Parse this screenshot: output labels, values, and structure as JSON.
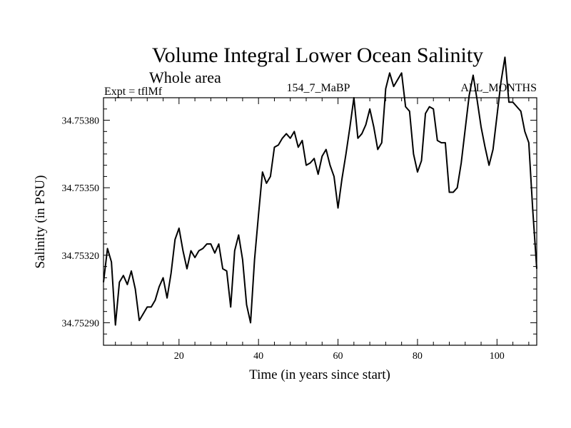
{
  "chart_data": {
    "type": "line",
    "title": "Volume Integral Lower Ocean Salinity",
    "subtitle": "Whole area",
    "label_left": "Expt = tflMf",
    "label_center": "154_7_MaBP",
    "label_right": "ALL_MONTHS",
    "xlabel": "Time (in years since start)",
    "ylabel": "Salinity (in PSU)",
    "xlim": [
      1,
      110
    ],
    "ylim": [
      34.7528,
      34.7539
    ],
    "x_major_ticks": [
      20,
      40,
      60,
      80,
      100
    ],
    "x_tick_labels": [
      "20",
      "40",
      "60",
      "80",
      "100"
    ],
    "x_minor_step": 4,
    "y_major_ticks": [
      34.7529,
      34.7532,
      34.7535,
      34.7538
    ],
    "y_tick_labels": [
      "34.75290",
      "34.75320",
      "34.75350",
      "34.75380"
    ],
    "y_minor_step": 5e-05,
    "line_color": "#000000",
    "series": [
      {
        "name": "salinity",
        "x": [
          1,
          2,
          3,
          4,
          5,
          6,
          7,
          8,
          9,
          10,
          11,
          12,
          13,
          14,
          15,
          16,
          17,
          18,
          19,
          20,
          21,
          22,
          23,
          24,
          25,
          26,
          27,
          28,
          29,
          30,
          31,
          32,
          33,
          34,
          35,
          36,
          37,
          38,
          39,
          40,
          41,
          42,
          43,
          44,
          45,
          46,
          47,
          48,
          49,
          50,
          51,
          52,
          53,
          54,
          55,
          56,
          57,
          58,
          59,
          60,
          61,
          62,
          63,
          64,
          65,
          66,
          67,
          68,
          69,
          70,
          71,
          72,
          73,
          74,
          75,
          76,
          77,
          78,
          79,
          80,
          81,
          82,
          83,
          84,
          85,
          86,
          87,
          88,
          89,
          90,
          91,
          92,
          93,
          94,
          95,
          96,
          97,
          98,
          99,
          100,
          101,
          102,
          103,
          104,
          105,
          106,
          107,
          108,
          109,
          110
        ],
        "values": [
          34.75308,
          34.75323,
          34.75317,
          34.75289,
          34.75308,
          34.75311,
          34.75307,
          34.75313,
          34.75305,
          34.75291,
          34.75294,
          34.75297,
          34.75297,
          34.753,
          34.75306,
          34.7531,
          34.75301,
          34.75312,
          34.75327,
          34.75332,
          34.75322,
          34.75314,
          34.75322,
          34.75319,
          34.75322,
          34.75323,
          34.75325,
          34.75325,
          34.75321,
          34.75325,
          34.75314,
          34.75313,
          34.75297,
          34.75322,
          34.75329,
          34.75318,
          34.75298,
          34.7529,
          34.75318,
          34.75338,
          34.75357,
          34.75352,
          34.75355,
          34.75368,
          34.75369,
          34.75372,
          34.75374,
          34.75372,
          34.75375,
          34.75368,
          34.75371,
          34.7536,
          34.75361,
          34.75363,
          34.75356,
          34.75364,
          34.75367,
          34.7536,
          34.75355,
          34.75341,
          34.75354,
          34.75365,
          34.75377,
          34.7539,
          34.75372,
          34.75374,
          34.75378,
          34.75385,
          34.75377,
          34.75367,
          34.7537,
          34.75394,
          34.75401,
          34.75395,
          34.75398,
          34.75401,
          34.75386,
          34.75384,
          34.75365,
          34.75357,
          34.75362,
          34.75383,
          34.75386,
          34.75385,
          34.75371,
          34.7537,
          34.7537,
          34.75348,
          34.75348,
          34.7535,
          34.75361,
          34.75376,
          34.75391,
          34.754,
          34.75389,
          34.75377,
          34.75368,
          34.7536,
          34.75367,
          34.75382,
          34.75397,
          34.75408,
          34.75388,
          34.75388,
          34.75386,
          34.75384,
          34.75375,
          34.7537,
          34.7534,
          34.75314
        ]
      }
    ]
  }
}
